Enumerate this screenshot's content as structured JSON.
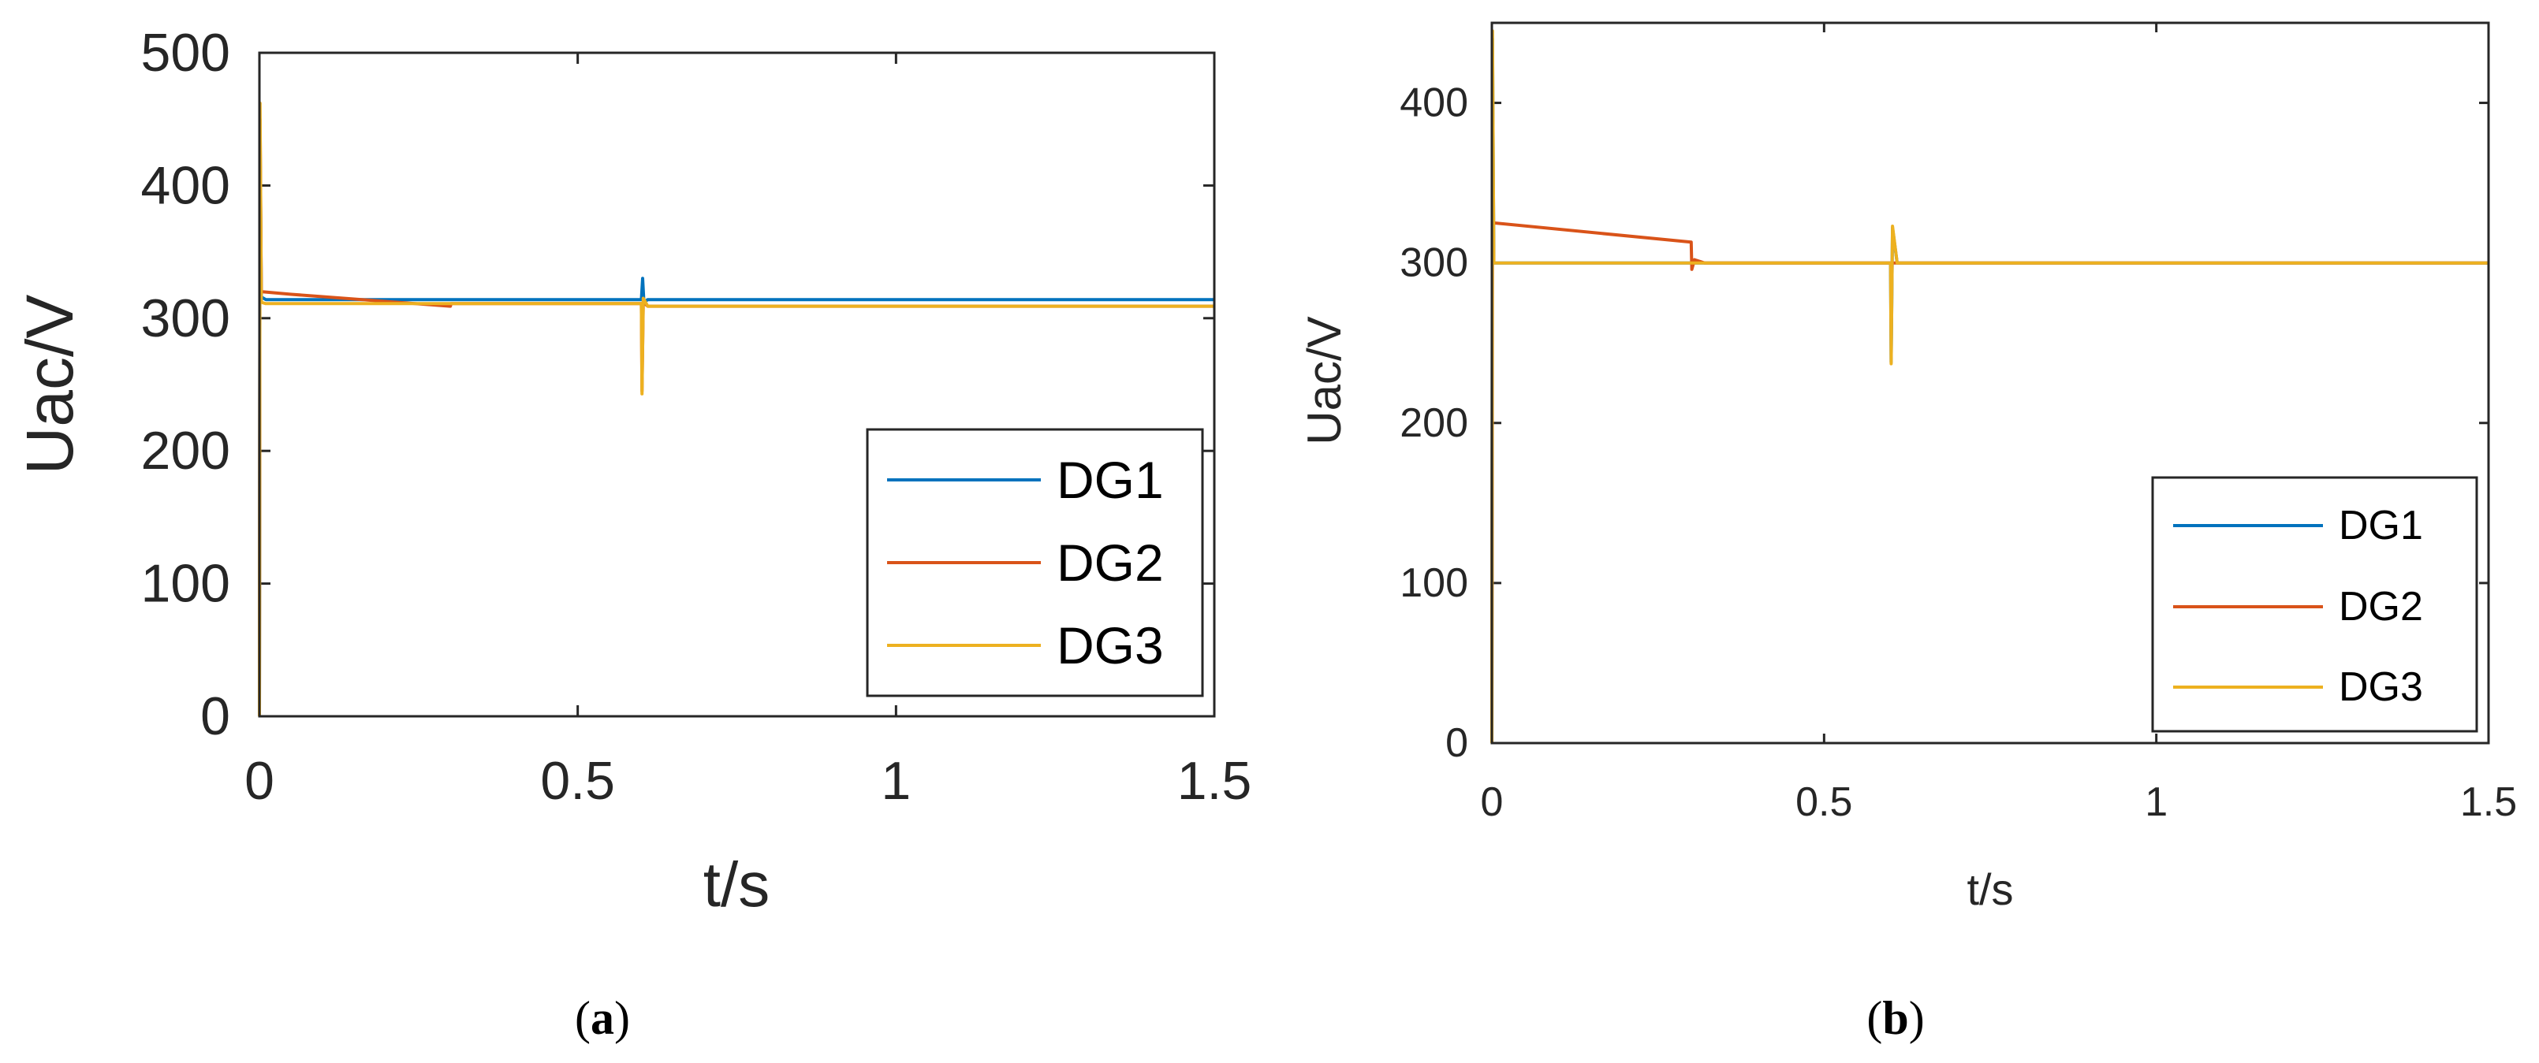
{
  "chart_data": [
    {
      "panel": "a",
      "type": "line",
      "caption_letter": "a",
      "xlabel": "t/s",
      "ylabel": "Uac/V",
      "xlim": [
        0,
        1.5
      ],
      "ylim": [
        0,
        500
      ],
      "xticks": [
        0,
        0.5,
        1,
        1.5
      ],
      "xtick_labels": [
        "0",
        "0.5",
        "1",
        "1.5"
      ],
      "yticks": [
        0,
        100,
        200,
        300,
        400,
        500
      ],
      "ytick_labels": [
        "0",
        "100",
        "200",
        "300",
        "400",
        "500"
      ],
      "legend_position": "bottom-right",
      "series": [
        {
          "name": "DG1",
          "color": "#0072BD",
          "points": [
            [
              0,
              0
            ],
            [
              0.001,
              440
            ],
            [
              0.003,
              316
            ],
            [
              0.01,
              314
            ],
            [
              0.6,
              314
            ],
            [
              0.602,
              330
            ],
            [
              0.604,
              312
            ],
            [
              0.61,
              314
            ],
            [
              1.5,
              314
            ]
          ]
        },
        {
          "name": "DG2",
          "color": "#D95319",
          "points": [
            [
              0,
              0
            ],
            [
              0.001,
              450
            ],
            [
              0.003,
              320
            ],
            [
              0.05,
              318
            ],
            [
              0.3,
              309
            ],
            [
              0.301,
              311
            ],
            [
              0.6,
              311
            ],
            [
              0.601,
              245
            ],
            [
              0.603,
              312
            ],
            [
              0.61,
              309
            ],
            [
              1.5,
              309
            ]
          ]
        },
        {
          "name": "DG3",
          "color": "#EDB120",
          "points": [
            [
              0,
              0
            ],
            [
              0.001,
              462
            ],
            [
              0.003,
              312
            ],
            [
              0.01,
              311
            ],
            [
              0.6,
              311
            ],
            [
              0.601,
              243
            ],
            [
              0.603,
              315
            ],
            [
              0.61,
              309
            ],
            [
              1.5,
              309
            ]
          ]
        }
      ]
    },
    {
      "panel": "b",
      "type": "line",
      "caption_letter": "b",
      "xlabel": "t/s",
      "ylabel": "Uac/V",
      "xlim": [
        0,
        1.5
      ],
      "ylim": [
        0,
        450
      ],
      "xticks": [
        0,
        0.5,
        1,
        1.5
      ],
      "xtick_labels": [
        "0",
        "0.5",
        "1",
        "1.5"
      ],
      "yticks": [
        0,
        100,
        200,
        300,
        400
      ],
      "ytick_labels": [
        "0",
        "100",
        "200",
        "300",
        "400"
      ],
      "legend_position": "bottom-right",
      "series": [
        {
          "name": "DG1",
          "color": "#0072BD",
          "points": [
            [
              0,
              0
            ],
            [
              0.001,
              440
            ],
            [
              0.003,
              300
            ],
            [
              0.6,
              300
            ],
            [
              0.601,
              238
            ],
            [
              0.603,
              322
            ],
            [
              0.61,
              300
            ],
            [
              1.5,
              300
            ]
          ]
        },
        {
          "name": "DG2",
          "color": "#D95319",
          "points": [
            [
              0,
              0
            ],
            [
              0.001,
              330
            ],
            [
              0.003,
              325
            ],
            [
              0.3,
              313
            ],
            [
              0.301,
              296
            ],
            [
              0.305,
              302
            ],
            [
              0.32,
              300
            ],
            [
              1.5,
              300
            ]
          ]
        },
        {
          "name": "DG3",
          "color": "#EDB120",
          "points": [
            [
              0,
              0
            ],
            [
              0.001,
              445
            ],
            [
              0.003,
              300
            ],
            [
              0.6,
              300
            ],
            [
              0.601,
              237
            ],
            [
              0.603,
              323
            ],
            [
              0.61,
              300
            ],
            [
              1.5,
              300
            ]
          ]
        }
      ]
    }
  ]
}
